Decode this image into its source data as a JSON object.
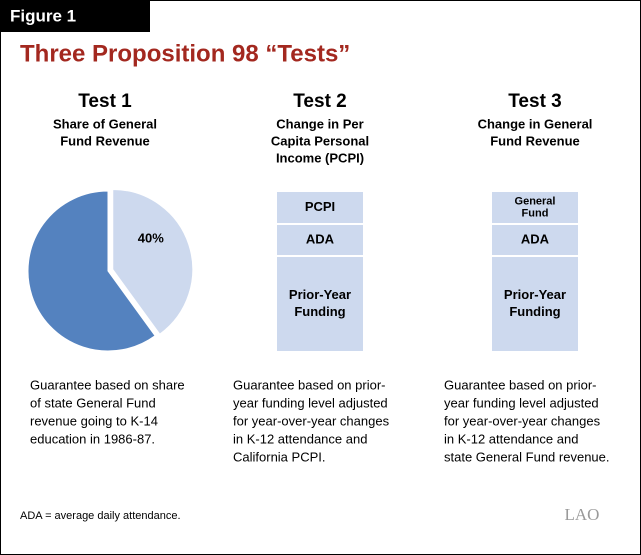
{
  "figure_label": "Figure 1",
  "title": "Three Proposition 98 “Tests”",
  "tests": [
    {
      "heading": "Test 1",
      "subtitle": [
        "Share of General",
        "Fund Revenue"
      ],
      "pie": {
        "type": "pie",
        "values": [
          40,
          60
        ],
        "value_labels": [
          "40%",
          null
        ],
        "colors": [
          "#cdd9ee",
          "#5482bf"
        ]
      },
      "description": [
        "Guarantee based on share",
        "of state General Fund",
        "revenue going to K-14",
        "education in 1986-87."
      ]
    },
    {
      "heading": "Test 2",
      "subtitle": [
        "Change in Per",
        "Capita Personal",
        "Income (PCPI)"
      ],
      "boxes": [
        [
          "PCPI"
        ],
        [
          "ADA"
        ],
        [
          "Prior-Year",
          "Funding"
        ]
      ],
      "description": [
        "Guarantee based on prior-",
        "year funding level adjusted",
        "for year-over-year changes",
        "in K-12 attendance and",
        "California PCPI."
      ]
    },
    {
      "heading": "Test 3",
      "subtitle": [
        "Change in General",
        "Fund Revenue"
      ],
      "boxes": [
        [
          "General",
          "Fund"
        ],
        [
          "ADA"
        ],
        [
          "Prior-Year",
          "Funding"
        ]
      ],
      "description": [
        "Guarantee based on prior-",
        "year funding level adjusted",
        "for year-over-year changes",
        "in K-12 attendance and",
        "state General Fund revenue."
      ]
    }
  ],
  "footnote": "ADA = average daily attendance.",
  "logo": "LAO"
}
